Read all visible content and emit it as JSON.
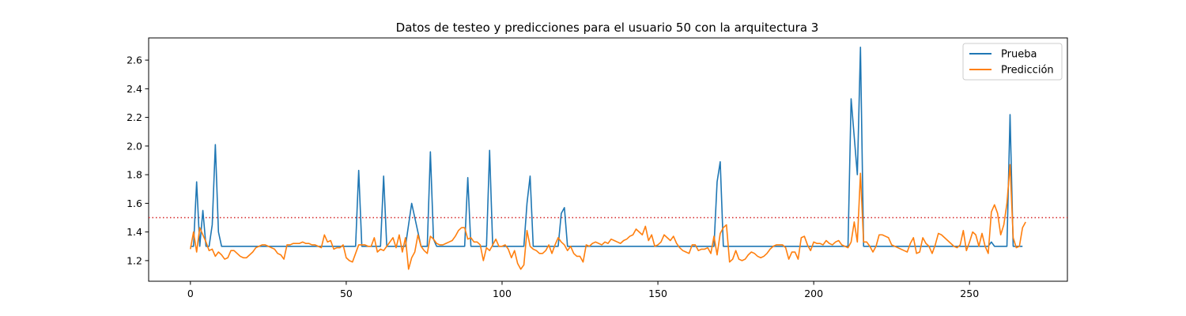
{
  "chart_data": {
    "type": "line",
    "title": "Datos de testeo y predicciones para el usuario 50 con la arquitectura 3",
    "xlabel": "",
    "ylabel": "",
    "xlim": [
      -13.4,
      281.4
    ],
    "ylim": [
      1.056,
      2.755
    ],
    "xticks": [
      0,
      50,
      100,
      150,
      200,
      250
    ],
    "yticks": [
      1.2,
      1.4,
      1.6,
      1.8,
      2.0,
      2.2,
      2.4,
      2.6
    ],
    "ytick_labels": [
      "1.2",
      "1.4",
      "1.6",
      "1.8",
      "2.0",
      "2.2",
      "2.4",
      "2.6"
    ],
    "legend_position": "top-right",
    "threshold": {
      "y": 1.5,
      "color": "#d62728",
      "style": "dotted"
    },
    "series": [
      {
        "name": "Prueba",
        "color": "#1f77b4",
        "points": [
          [
            0,
            1.3
          ],
          [
            1,
            1.3
          ],
          [
            2,
            1.75
          ],
          [
            3,
            1.3
          ],
          [
            4,
            1.55
          ],
          [
            5,
            1.3
          ],
          [
            6,
            1.3
          ],
          [
            7,
            1.45
          ],
          [
            8,
            2.01
          ],
          [
            9,
            1.4
          ],
          [
            10,
            1.3
          ],
          [
            53,
            1.3
          ],
          [
            54,
            1.83
          ],
          [
            55,
            1.3
          ],
          [
            61,
            1.3
          ],
          [
            62,
            1.79
          ],
          [
            63,
            1.3
          ],
          [
            69,
            1.3
          ],
          [
            71,
            1.6
          ],
          [
            73,
            1.4
          ],
          [
            74,
            1.3
          ],
          [
            76,
            1.3
          ],
          [
            77,
            1.96
          ],
          [
            78,
            1.35
          ],
          [
            79,
            1.3
          ],
          [
            88,
            1.3
          ],
          [
            89,
            1.78
          ],
          [
            90,
            1.3
          ],
          [
            95,
            1.3
          ],
          [
            96,
            1.97
          ],
          [
            97,
            1.3
          ],
          [
            107,
            1.3
          ],
          [
            108,
            1.6
          ],
          [
            109,
            1.79
          ],
          [
            110,
            1.3
          ],
          [
            118,
            1.3
          ],
          [
            119,
            1.53
          ],
          [
            120,
            1.57
          ],
          [
            121,
            1.3
          ],
          [
            168,
            1.3
          ],
          [
            169,
            1.75
          ],
          [
            170,
            1.89
          ],
          [
            171,
            1.3
          ],
          [
            211,
            1.3
          ],
          [
            212,
            2.33
          ],
          [
            214,
            1.8
          ],
          [
            215,
            2.69
          ],
          [
            216,
            1.3
          ],
          [
            256,
            1.3
          ],
          [
            257,
            1.33
          ],
          [
            258,
            1.3
          ],
          [
            262,
            1.3
          ],
          [
            263,
            2.22
          ],
          [
            264,
            1.3
          ],
          [
            267,
            1.3
          ]
        ]
      },
      {
        "name": "Predicción",
        "color": "#ff7f0e",
        "points": [
          [
            0,
            1.28
          ],
          [
            1,
            1.4
          ],
          [
            2,
            1.26
          ],
          [
            3,
            1.43
          ],
          [
            4,
            1.38
          ],
          [
            5,
            1.33
          ],
          [
            6,
            1.27
          ],
          [
            7,
            1.28
          ],
          [
            8,
            1.23
          ],
          [
            9,
            1.26
          ],
          [
            10,
            1.24
          ],
          [
            11,
            1.21
          ],
          [
            12,
            1.22
          ],
          [
            13,
            1.27
          ],
          [
            14,
            1.27
          ],
          [
            15,
            1.25
          ],
          [
            16,
            1.23
          ],
          [
            17,
            1.22
          ],
          [
            18,
            1.22
          ],
          [
            19,
            1.24
          ],
          [
            20,
            1.26
          ],
          [
            21,
            1.29
          ],
          [
            22,
            1.3
          ],
          [
            23,
            1.31
          ],
          [
            24,
            1.31
          ],
          [
            25,
            1.3
          ],
          [
            26,
            1.29
          ],
          [
            27,
            1.28
          ],
          [
            28,
            1.25
          ],
          [
            29,
            1.24
          ],
          [
            30,
            1.21
          ],
          [
            31,
            1.31
          ],
          [
            32,
            1.31
          ],
          [
            33,
            1.32
          ],
          [
            34,
            1.32
          ],
          [
            35,
            1.32
          ],
          [
            36,
            1.33
          ],
          [
            37,
            1.32
          ],
          [
            38,
            1.32
          ],
          [
            39,
            1.31
          ],
          [
            40,
            1.31
          ],
          [
            41,
            1.3
          ],
          [
            42,
            1.29
          ],
          [
            43,
            1.38
          ],
          [
            44,
            1.33
          ],
          [
            45,
            1.34
          ],
          [
            46,
            1.28
          ],
          [
            47,
            1.29
          ],
          [
            48,
            1.29
          ],
          [
            49,
            1.31
          ],
          [
            50,
            1.22
          ],
          [
            51,
            1.2
          ],
          [
            52,
            1.19
          ],
          [
            53,
            1.25
          ],
          [
            54,
            1.31
          ],
          [
            55,
            1.31
          ],
          [
            56,
            1.31
          ],
          [
            57,
            1.3
          ],
          [
            58,
            1.3
          ],
          [
            59,
            1.36
          ],
          [
            60,
            1.26
          ],
          [
            61,
            1.28
          ],
          [
            62,
            1.27
          ],
          [
            63,
            1.3
          ],
          [
            64,
            1.33
          ],
          [
            65,
            1.36
          ],
          [
            66,
            1.29
          ],
          [
            67,
            1.38
          ],
          [
            68,
            1.26
          ],
          [
            69,
            1.36
          ],
          [
            70,
            1.14
          ],
          [
            71,
            1.22
          ],
          [
            72,
            1.26
          ],
          [
            73,
            1.38
          ],
          [
            74,
            1.3
          ],
          [
            75,
            1.27
          ],
          [
            76,
            1.25
          ],
          [
            77,
            1.37
          ],
          [
            78,
            1.35
          ],
          [
            79,
            1.32
          ],
          [
            80,
            1.31
          ],
          [
            81,
            1.31
          ],
          [
            82,
            1.32
          ],
          [
            83,
            1.33
          ],
          [
            84,
            1.34
          ],
          [
            85,
            1.37
          ],
          [
            86,
            1.41
          ],
          [
            87,
            1.43
          ],
          [
            88,
            1.43
          ],
          [
            89,
            1.35
          ],
          [
            90,
            1.36
          ],
          [
            91,
            1.33
          ],
          [
            92,
            1.33
          ],
          [
            93,
            1.31
          ],
          [
            94,
            1.2
          ],
          [
            95,
            1.29
          ],
          [
            96,
            1.27
          ],
          [
            97,
            1.31
          ],
          [
            98,
            1.35
          ],
          [
            99,
            1.3
          ],
          [
            100,
            1.3
          ],
          [
            101,
            1.31
          ],
          [
            102,
            1.28
          ],
          [
            103,
            1.22
          ],
          [
            104,
            1.27
          ],
          [
            105,
            1.18
          ],
          [
            106,
            1.14
          ],
          [
            107,
            1.17
          ],
          [
            108,
            1.41
          ],
          [
            109,
            1.3
          ],
          [
            110,
            1.28
          ],
          [
            111,
            1.27
          ],
          [
            112,
            1.25
          ],
          [
            113,
            1.25
          ],
          [
            114,
            1.27
          ],
          [
            115,
            1.31
          ],
          [
            116,
            1.25
          ],
          [
            117,
            1.31
          ],
          [
            118,
            1.36
          ],
          [
            119,
            1.33
          ],
          [
            120,
            1.31
          ],
          [
            121,
            1.27
          ],
          [
            122,
            1.3
          ],
          [
            123,
            1.25
          ],
          [
            124,
            1.23
          ],
          [
            125,
            1.23
          ],
          [
            126,
            1.19
          ],
          [
            127,
            1.31
          ],
          [
            128,
            1.3
          ],
          [
            129,
            1.32
          ],
          [
            130,
            1.33
          ],
          [
            131,
            1.32
          ],
          [
            132,
            1.31
          ],
          [
            133,
            1.33
          ],
          [
            134,
            1.32
          ],
          [
            135,
            1.35
          ],
          [
            136,
            1.34
          ],
          [
            137,
            1.33
          ],
          [
            138,
            1.32
          ],
          [
            139,
            1.34
          ],
          [
            140,
            1.35
          ],
          [
            141,
            1.37
          ],
          [
            142,
            1.38
          ],
          [
            143,
            1.42
          ],
          [
            144,
            1.4
          ],
          [
            145,
            1.38
          ],
          [
            146,
            1.44
          ],
          [
            147,
            1.34
          ],
          [
            148,
            1.38
          ],
          [
            149,
            1.3
          ],
          [
            150,
            1.31
          ],
          [
            151,
            1.33
          ],
          [
            152,
            1.38
          ],
          [
            153,
            1.36
          ],
          [
            154,
            1.34
          ],
          [
            155,
            1.37
          ],
          [
            156,
            1.32
          ],
          [
            157,
            1.29
          ],
          [
            158,
            1.27
          ],
          [
            159,
            1.26
          ],
          [
            160,
            1.25
          ],
          [
            161,
            1.31
          ],
          [
            162,
            1.31
          ],
          [
            163,
            1.27
          ],
          [
            164,
            1.28
          ],
          [
            165,
            1.28
          ],
          [
            166,
            1.29
          ],
          [
            167,
            1.25
          ],
          [
            168,
            1.37
          ],
          [
            169,
            1.24
          ],
          [
            170,
            1.39
          ],
          [
            171,
            1.43
          ],
          [
            172,
            1.45
          ],
          [
            173,
            1.19
          ],
          [
            174,
            1.21
          ],
          [
            175,
            1.27
          ],
          [
            176,
            1.21
          ],
          [
            177,
            1.2
          ],
          [
            178,
            1.21
          ],
          [
            179,
            1.24
          ],
          [
            180,
            1.26
          ],
          [
            181,
            1.25
          ],
          [
            182,
            1.23
          ],
          [
            183,
            1.22
          ],
          [
            184,
            1.23
          ],
          [
            185,
            1.25
          ],
          [
            186,
            1.28
          ],
          [
            187,
            1.3
          ],
          [
            188,
            1.31
          ],
          [
            189,
            1.31
          ],
          [
            190,
            1.31
          ],
          [
            191,
            1.29
          ],
          [
            192,
            1.21
          ],
          [
            193,
            1.26
          ],
          [
            194,
            1.26
          ],
          [
            195,
            1.21
          ],
          [
            196,
            1.36
          ],
          [
            197,
            1.37
          ],
          [
            198,
            1.31
          ],
          [
            199,
            1.27
          ],
          [
            200,
            1.33
          ],
          [
            201,
            1.32
          ],
          [
            202,
            1.32
          ],
          [
            203,
            1.31
          ],
          [
            204,
            1.34
          ],
          [
            205,
            1.32
          ],
          [
            206,
            1.31
          ],
          [
            207,
            1.33
          ],
          [
            208,
            1.34
          ],
          [
            209,
            1.31
          ],
          [
            210,
            1.3
          ],
          [
            211,
            1.29
          ],
          [
            212,
            1.33
          ],
          [
            213,
            1.47
          ],
          [
            214,
            1.33
          ],
          [
            215,
            1.81
          ],
          [
            216,
            1.33
          ],
          [
            217,
            1.33
          ],
          [
            218,
            1.3
          ],
          [
            219,
            1.26
          ],
          [
            220,
            1.3
          ],
          [
            221,
            1.38
          ],
          [
            222,
            1.38
          ],
          [
            223,
            1.37
          ],
          [
            224,
            1.36
          ],
          [
            225,
            1.31
          ],
          [
            226,
            1.3
          ],
          [
            227,
            1.29
          ],
          [
            228,
            1.28
          ],
          [
            229,
            1.27
          ],
          [
            230,
            1.26
          ],
          [
            231,
            1.32
          ],
          [
            232,
            1.36
          ],
          [
            233,
            1.25
          ],
          [
            234,
            1.26
          ],
          [
            235,
            1.36
          ],
          [
            236,
            1.32
          ],
          [
            237,
            1.3
          ],
          [
            238,
            1.25
          ],
          [
            239,
            1.31
          ],
          [
            240,
            1.39
          ],
          [
            241,
            1.38
          ],
          [
            242,
            1.36
          ],
          [
            243,
            1.34
          ],
          [
            244,
            1.32
          ],
          [
            245,
            1.3
          ],
          [
            246,
            1.29
          ],
          [
            247,
            1.31
          ],
          [
            248,
            1.41
          ],
          [
            249,
            1.27
          ],
          [
            250,
            1.33
          ],
          [
            251,
            1.4
          ],
          [
            252,
            1.38
          ],
          [
            253,
            1.3
          ],
          [
            254,
            1.39
          ],
          [
            255,
            1.3
          ],
          [
            256,
            1.25
          ],
          [
            257,
            1.54
          ],
          [
            258,
            1.59
          ],
          [
            259,
            1.53
          ],
          [
            260,
            1.38
          ],
          [
            261,
            1.45
          ],
          [
            262,
            1.6
          ],
          [
            263,
            1.87
          ],
          [
            264,
            1.36
          ],
          [
            265,
            1.29
          ],
          [
            266,
            1.3
          ],
          [
            267,
            1.43
          ],
          [
            268,
            1.47
          ]
        ]
      }
    ]
  }
}
